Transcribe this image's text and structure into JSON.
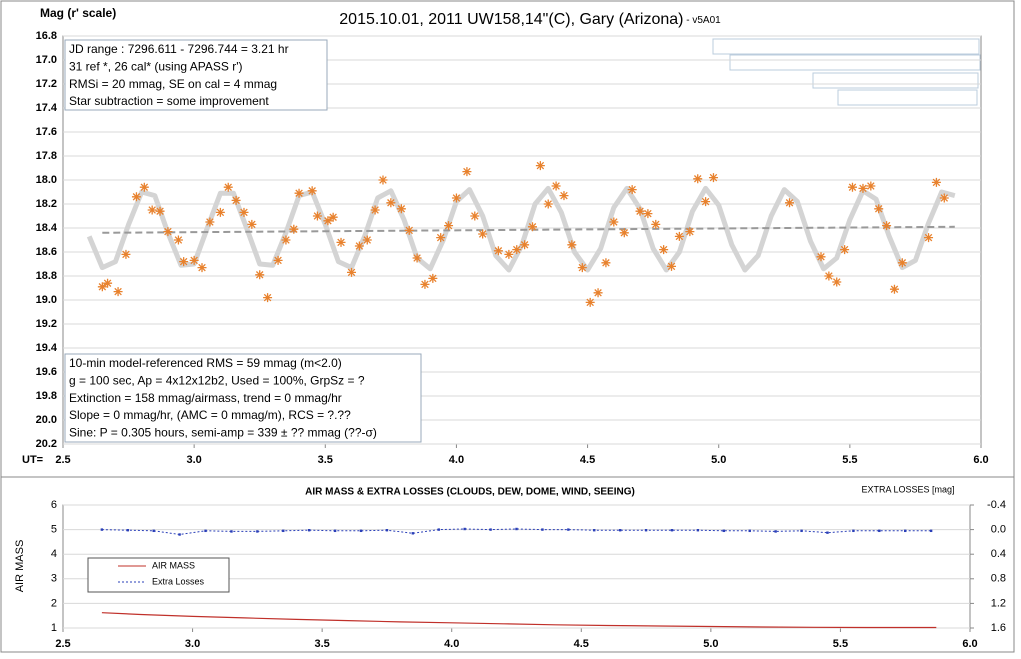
{
  "chart_data": [
    {
      "type": "scatter",
      "title": "2015.10.01, 2011 UW158,14\"(C), Gary (Arizona)",
      "subtitle": " - v5A01",
      "y_label": "Mag (r' scale)",
      "x_label": "UT=",
      "xlim": [
        2.5,
        6.0
      ],
      "xticks": [
        2.5,
        {
          "value": 3,
          "label": "3.0"
        },
        3.5,
        {
          "value": 4,
          "label": "4.0"
        },
        4.5,
        {
          "value": 5,
          "label": "5.0"
        },
        5.5,
        {
          "value": 6,
          "label": "6.0"
        }
      ],
      "ylim": [
        16.8,
        20.2
      ],
      "y_reversed": true,
      "yticks": [
        16.8,
        {
          "value": 17,
          "label": "17.0"
        },
        17.2,
        17.4,
        17.6,
        17.8,
        {
          "value": 18,
          "label": "18.0"
        },
        18.2,
        18.4,
        18.6,
        18.8,
        {
          "value": 19,
          "label": "19.0"
        },
        19.2,
        19.4,
        19.6,
        19.8,
        {
          "value": 20,
          "label": "20.0"
        },
        20.2
      ],
      "grid": true,
      "annotations": [
        [
          "JD range : 7296.611 - 7296.744 = 3.21 hr",
          " 31 ref *, 26 cal* (using APASS r')",
          "RMSi = 20 mmag, SE on cal = 4 mmag",
          "Star subtraction = some improvement"
        ],
        [
          "10-min model-referenced RMS = 59 mmag (m<2.0)",
          "g = 100 sec, Ap = 4x12x12b2, Used = 100%,  GrpSz = ?",
          "Extinction = 158 mmag/airmass, trend = 0 mmag/hr",
          "Slope = 0 mmag/hr, (AMC = 0 mmag/m), RCS = ?.??",
          "Sine: P = 0.305 hours, semi-amp = 339 ± ?? mmag (??-σ)"
        ]
      ],
      "points": {
        "color": "#e8822e",
        "x": [
          2.65,
          2.67,
          2.71,
          2.74,
          2.78,
          2.81,
          2.84,
          2.87,
          2.9,
          2.94,
          2.96,
          3.0,
          3.03,
          3.06,
          3.1,
          3.13,
          3.16,
          3.19,
          3.22,
          3.25,
          3.28,
          3.32,
          3.35,
          3.38,
          3.4,
          3.45,
          3.47,
          3.51,
          3.53,
          3.56,
          3.6,
          3.63,
          3.66,
          3.69,
          3.72,
          3.75,
          3.79,
          3.82,
          3.85,
          3.88,
          3.91,
          3.94,
          3.97,
          4.0,
          4.04,
          4.07,
          4.1,
          4.16,
          4.2,
          4.23,
          4.26,
          4.29,
          4.32,
          4.35,
          4.38,
          4.41,
          4.44,
          4.48,
          4.51,
          4.54,
          4.57,
          4.6,
          4.64,
          4.67,
          4.7,
          4.73,
          4.76,
          4.79,
          4.82,
          4.85,
          4.89,
          4.92,
          4.95,
          4.98,
          5.27,
          5.39,
          5.42,
          5.45,
          5.48,
          5.51,
          5.55,
          5.58,
          5.61,
          5.64,
          5.67,
          5.7,
          5.8,
          5.83,
          5.86
        ],
        "values": [
          18.89,
          18.86,
          18.93,
          18.62,
          18.14,
          18.06,
          18.25,
          18.26,
          18.43,
          18.5,
          18.68,
          18.67,
          18.73,
          18.35,
          18.27,
          18.06,
          18.17,
          18.27,
          18.37,
          18.79,
          18.98,
          18.67,
          18.5,
          18.41,
          18.11,
          18.09,
          18.3,
          18.34,
          18.31,
          18.52,
          18.77,
          18.55,
          18.5,
          18.25,
          18.0,
          18.19,
          18.24,
          18.42,
          18.65,
          18.87,
          18.82,
          18.48,
          18.38,
          18.15,
          17.93,
          18.3,
          18.45,
          18.59,
          18.62,
          18.58,
          18.54,
          18.39,
          17.88,
          18.2,
          18.05,
          18.13,
          18.54,
          18.73,
          19.02,
          18.94,
          18.69,
          18.35,
          18.44,
          18.08,
          18.26,
          18.28,
          18.37,
          18.58,
          18.72,
          18.47,
          18.43,
          17.99,
          18.18,
          17.98,
          18.19,
          18.64,
          18.8,
          18.85,
          18.58,
          18.06,
          18.07,
          18.05,
          18.24,
          18.38,
          18.91,
          18.69,
          18.48,
          18.02,
          18.15
        ]
      },
      "model": {
        "color": "#d4d4d4",
        "x": [
          2.6,
          2.65,
          2.7,
          2.75,
          2.8,
          2.85,
          2.9,
          2.95,
          3.0,
          3.05,
          3.1,
          3.15,
          3.2,
          3.25,
          3.3,
          3.35,
          3.4,
          3.45,
          3.5,
          3.55,
          3.6,
          3.65,
          3.7,
          3.75,
          3.8,
          3.85,
          3.9,
          3.95,
          4.0,
          4.05,
          4.1,
          4.15,
          4.2,
          4.25,
          4.3,
          4.35,
          4.4,
          4.45,
          4.5,
          4.55,
          4.6,
          4.65,
          4.7,
          4.75,
          4.8,
          4.85,
          4.9,
          4.95,
          5.0,
          5.05,
          5.1,
          5.15,
          5.2,
          5.25,
          5.3,
          5.35,
          5.4,
          5.45,
          5.5,
          5.55,
          5.6,
          5.65,
          5.7,
          5.75,
          5.8,
          5.85,
          5.9
        ],
        "values": [
          18.47,
          18.73,
          18.68,
          18.37,
          18.1,
          18.13,
          18.44,
          18.71,
          18.7,
          18.4,
          18.11,
          18.11,
          18.4,
          18.7,
          18.71,
          18.44,
          18.13,
          18.1,
          18.37,
          18.68,
          18.73,
          18.47,
          18.15,
          18.09,
          18.33,
          18.65,
          18.74,
          18.5,
          18.18,
          18.08,
          18.3,
          18.63,
          18.75,
          18.54,
          18.2,
          18.07,
          18.27,
          18.6,
          18.75,
          18.57,
          18.23,
          18.07,
          18.24,
          18.57,
          18.75,
          18.6,
          18.26,
          18.07,
          18.21,
          18.54,
          18.75,
          18.63,
          18.3,
          18.08,
          18.18,
          18.51,
          18.74,
          18.65,
          18.33,
          18.09,
          18.16,
          18.47,
          18.73,
          18.67,
          18.36,
          18.1,
          18.13
        ]
      },
      "trend": {
        "color": "#999999",
        "x": [
          2.65,
          5.9
        ],
        "values": [
          18.44,
          18.39
        ]
      }
    },
    {
      "type": "line",
      "title": "AIR MASS & EXTRA LOSSES (CLOUDS, DEW, DOME, WIND, SEEING)",
      "y_label": "AIR MASS",
      "y2_label": "EXTRA LOSSES [mag]",
      "xlim": [
        2.5,
        6.0
      ],
      "xticks": [
        2.5,
        {
          "value": 3,
          "label": "3.0"
        },
        3.5,
        {
          "value": 4,
          "label": "4.0"
        },
        4.5,
        {
          "value": 5,
          "label": "5.0"
        },
        5.5,
        {
          "value": 6,
          "label": "6.0"
        }
      ],
      "ylim": [
        1,
        6
      ],
      "yticks": [
        1,
        2,
        3,
        4,
        5,
        6
      ],
      "y2lim": [
        -0.4,
        1.6
      ],
      "y2_reversed": true,
      "y2ticks": [
        -0.4,
        {
          "value": 0,
          "label": "0.0"
        },
        0.4,
        0.8,
        1.2,
        1.6
      ],
      "grid": true,
      "series": [
        {
          "name": "AIR MASS",
          "color": "#c0302a",
          "x": [
            2.65,
            2.8,
            3.0,
            3.2,
            3.4,
            3.6,
            3.8,
            4.0,
            4.2,
            4.4,
            4.6,
            4.8,
            5.0,
            5.2,
            5.4,
            5.6,
            5.87
          ],
          "values": [
            1.62,
            1.55,
            1.47,
            1.41,
            1.35,
            1.3,
            1.25,
            1.21,
            1.17,
            1.13,
            1.1,
            1.08,
            1.06,
            1.04,
            1.03,
            1.02,
            1.02
          ]
        },
        {
          "name": "Extra Losses",
          "color": "#2a3fb8",
          "axis": "y2",
          "x": [
            2.65,
            2.75,
            2.85,
            2.95,
            3.05,
            3.15,
            3.25,
            3.35,
            3.45,
            3.55,
            3.65,
            3.75,
            3.85,
            3.95,
            4.05,
            4.15,
            4.25,
            4.35,
            4.45,
            4.55,
            4.65,
            4.75,
            4.85,
            4.95,
            5.05,
            5.15,
            5.25,
            5.35,
            5.45,
            5.55,
            5.65,
            5.75,
            5.85
          ],
          "values": [
            0.0,
            0.01,
            0.02,
            0.08,
            0.02,
            0.03,
            0.03,
            0.02,
            0.01,
            0.02,
            0.02,
            0.01,
            0.06,
            0.0,
            -0.01,
            0.0,
            -0.01,
            0.0,
            0.0,
            0.01,
            0.01,
            0.01,
            0.01,
            0.01,
            0.02,
            0.02,
            0.03,
            0.02,
            0.05,
            0.02,
            0.02,
            0.02,
            0.02
          ]
        }
      ]
    }
  ]
}
